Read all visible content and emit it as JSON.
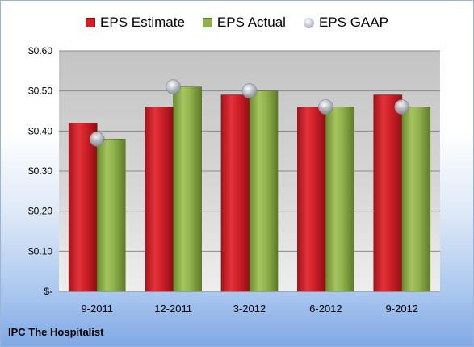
{
  "chart_data": {
    "type": "bar",
    "categories": [
      "9-2011",
      "12-2011",
      "3-2012",
      "6-2012",
      "9-2012"
    ],
    "series": [
      {
        "name": "EPS Estimate",
        "type": "bar",
        "values": [
          0.42,
          0.46,
          0.49,
          0.46,
          0.49
        ]
      },
      {
        "name": "EPS Actual",
        "type": "bar",
        "values": [
          0.38,
          0.51,
          0.5,
          0.46,
          0.46
        ]
      },
      {
        "name": "EPS GAAP",
        "type": "marker",
        "values": [
          0.38,
          0.51,
          0.5,
          0.46,
          0.46
        ]
      }
    ],
    "yticks": [
      "$-",
      "$0.10",
      "$0.20",
      "$0.30",
      "$0.40",
      "$0.50",
      "$0.60"
    ],
    "ylim": [
      0,
      0.6
    ],
    "grid": true,
    "legend_position": "top",
    "colors": {
      "estimate": "#d01f27",
      "actual": "#8fb04c",
      "gaap": "#b8bec8"
    }
  },
  "legend": {
    "estimate": "EPS Estimate",
    "actual": "EPS Actual",
    "gaap": "EPS GAAP"
  },
  "footer": {
    "company": "IPC The Hospitalist"
  }
}
